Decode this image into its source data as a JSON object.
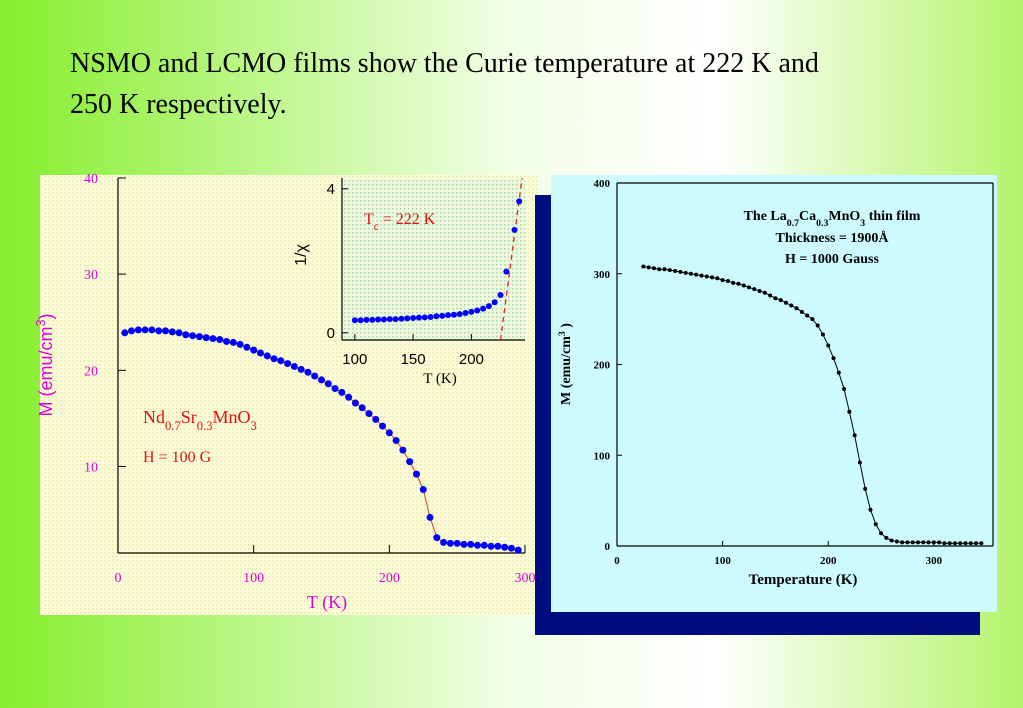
{
  "header": {
    "title_lines": [
      "NSMO and LCMO films show the Curie temperature at 222 K and",
      "250 K respectively."
    ]
  },
  "chart_data": [
    {
      "type": "line",
      "xlabel": "T (K)",
      "ylabel": {
        "parts": [
          "M (emu/cm",
          "3",
          ")"
        ],
        "script": "sup"
      },
      "annotations": [
        {
          "parts": [
            "Nd",
            "0.7",
            "Sr",
            "0.3",
            "MnO",
            "3"
          ],
          "script": "sub"
        },
        {
          "parts": [
            "H = 100 G"
          ],
          "script": "sub"
        }
      ],
      "xlim": [
        0,
        300
      ],
      "ylim": [
        1,
        40
      ],
      "xticks": [
        0,
        100,
        200,
        300
      ],
      "yticks": [
        10,
        20,
        30,
        40
      ],
      "color": "#0000ff",
      "line_color": "#d04020",
      "x": [
        5,
        10,
        15,
        20,
        25,
        30,
        35,
        40,
        45,
        50,
        55,
        60,
        65,
        70,
        75,
        80,
        85,
        90,
        95,
        100,
        105,
        110,
        115,
        120,
        125,
        130,
        135,
        140,
        145,
        150,
        155,
        160,
        165,
        170,
        175,
        180,
        185,
        190,
        195,
        200,
        205,
        210,
        215,
        220,
        225,
        230,
        235,
        240,
        245,
        250,
        255,
        260,
        265,
        270,
        275,
        280,
        285,
        290,
        295
      ],
      "values": [
        23.9,
        24.1,
        24.2,
        24.2,
        24.2,
        24.1,
        24.1,
        24.0,
        23.9,
        23.7,
        23.6,
        23.5,
        23.4,
        23.3,
        23.2,
        23.0,
        22.9,
        22.7,
        22.4,
        22.1,
        21.8,
        21.5,
        21.2,
        21.0,
        20.7,
        20.4,
        20.1,
        19.8,
        19.4,
        19.0,
        18.6,
        18.1,
        17.7,
        17.2,
        16.6,
        16.1,
        15.5,
        14.9,
        14.2,
        13.5,
        12.7,
        11.7,
        10.5,
        9.2,
        7.6,
        4.7,
        2.6,
        2.1,
        2.0,
        2.0,
        1.9,
        1.9,
        1.8,
        1.8,
        1.7,
        1.7,
        1.6,
        1.5,
        1.3
      ]
    },
    {
      "type": "line",
      "xlabel": "T (K)",
      "ylabel": "1/χ",
      "annotations": [
        {
          "parts": [
            "T",
            "c",
            " = 222 K"
          ],
          "script": "sub"
        }
      ],
      "xlim": [
        89,
        246
      ],
      "ylim": [
        -0.2,
        4.3
      ],
      "xticks": [
        100,
        150,
        200
      ],
      "yticks": [
        0,
        4
      ],
      "color": "#0000ff",
      "x": [
        100,
        105,
        110,
        115,
        120,
        125,
        130,
        135,
        140,
        145,
        150,
        155,
        160,
        165,
        170,
        175,
        180,
        185,
        190,
        195,
        200,
        205,
        210,
        215,
        220,
        225,
        230,
        237,
        241
      ],
      "values": [
        0.35,
        0.35,
        0.36,
        0.36,
        0.37,
        0.37,
        0.38,
        0.38,
        0.39,
        0.4,
        0.41,
        0.42,
        0.43,
        0.44,
        0.46,
        0.47,
        0.49,
        0.5,
        0.52,
        0.55,
        0.58,
        0.62,
        0.67,
        0.74,
        0.85,
        1.05,
        1.7,
        2.86,
        3.65
      ],
      "fit": {
        "color": "#e02020",
        "x": [
          225,
          243.5
        ],
        "values": [
          -0.2,
          4.3
        ]
      }
    },
    {
      "type": "line",
      "xlabel": "Temperature (K)",
      "ylabel": {
        "parts": [
          "M (emu/cm",
          "3",
          " )"
        ],
        "script": "sup"
      },
      "annotations": [
        {
          "parts": [
            "The La",
            "0.7",
            "Ca",
            "0.3",
            "MnO",
            "3",
            " thin film"
          ],
          "script": "sub"
        },
        {
          "parts": [
            "Thickness = 1900Å"
          ],
          "script": "sub"
        },
        {
          "parts": [
            "H = 1000 Gauss"
          ],
          "script": "sub"
        }
      ],
      "xlim": [
        0,
        356
      ],
      "ylim": [
        0,
        400
      ],
      "xticks": [
        0,
        100,
        200,
        300
      ],
      "yticks": [
        0,
        100,
        200,
        300,
        400
      ],
      "color": "#000000",
      "line_color": "#000000",
      "x": [
        25,
        30,
        35,
        40,
        45,
        50,
        55,
        60,
        65,
        70,
        75,
        80,
        85,
        90,
        95,
        100,
        105,
        110,
        115,
        120,
        125,
        130,
        135,
        140,
        145,
        150,
        155,
        160,
        165,
        170,
        175,
        180,
        185,
        190,
        195,
        200,
        205,
        210,
        215,
        220,
        225,
        230,
        235,
        240,
        245,
        250,
        255,
        260,
        265,
        270,
        275,
        280,
        285,
        290,
        295,
        300,
        305,
        310,
        315,
        320,
        325,
        330,
        335,
        340,
        345
      ],
      "values": [
        308,
        307,
        306,
        305,
        305,
        304,
        303,
        302,
        301,
        300,
        299,
        298,
        297,
        296,
        295,
        293,
        292,
        290,
        289,
        287,
        285,
        283,
        281,
        279,
        276,
        273,
        271,
        268,
        265,
        262,
        258,
        254,
        250,
        243,
        233,
        221,
        207,
        191,
        173,
        148,
        122,
        92,
        63,
        40,
        24,
        14,
        9,
        6,
        5,
        4,
        4,
        4,
        4,
        4,
        4,
        4,
        4,
        3,
        3,
        3,
        3,
        3,
        3,
        3,
        3
      ]
    }
  ]
}
